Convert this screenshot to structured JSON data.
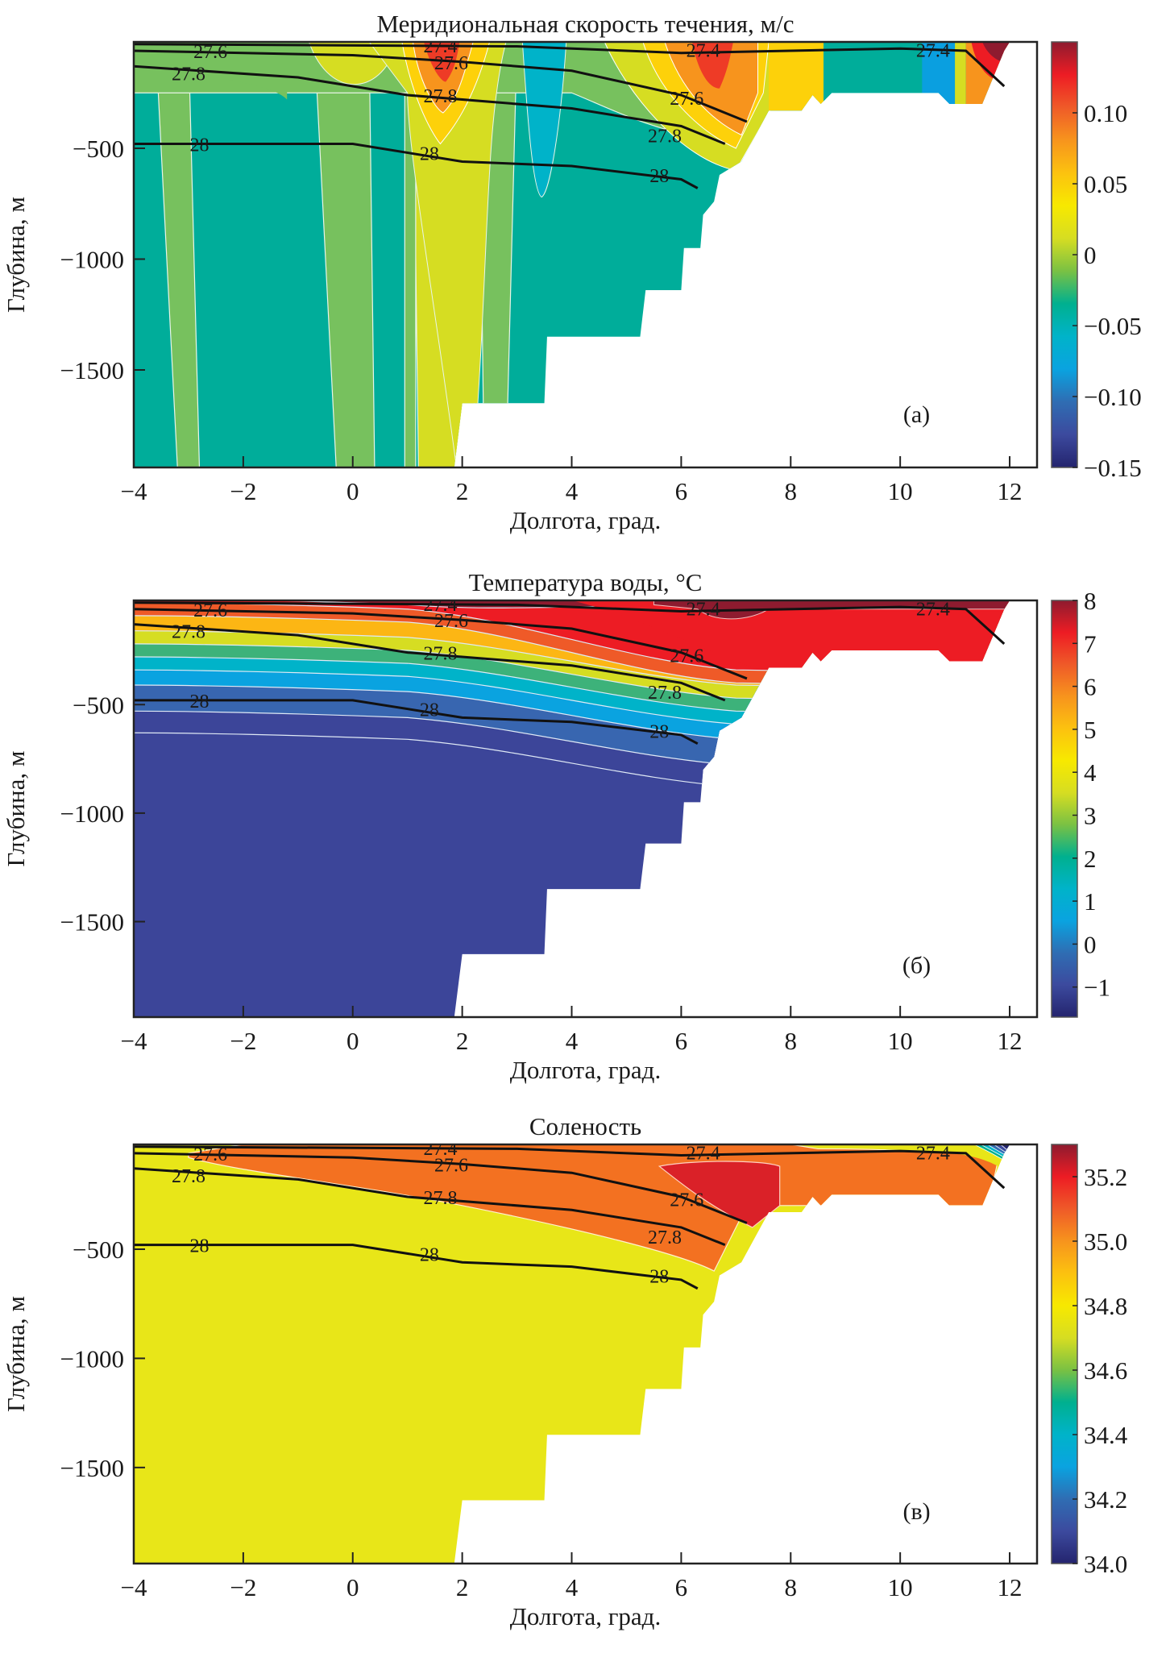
{
  "chart_data": [
    {
      "type": "heatmap",
      "panel_label": "(а)",
      "title": "Меридиональная скорость течения, м/с",
      "xlabel": "Долгота, град.",
      "ylabel": "Глубина, м",
      "xlim": [
        -4,
        12.5
      ],
      "ylim": [
        -1940,
        -20
      ],
      "xticks": [
        -4,
        -2,
        0,
        2,
        4,
        6,
        8,
        10,
        12
      ],
      "xtick_labels": [
        "−4",
        "−2",
        "0",
        "2",
        "4",
        "6",
        "8",
        "10",
        "12"
      ],
      "yticks": [
        -500,
        -1000,
        -1500
      ],
      "ytick_labels": [
        "−500",
        "−1000",
        "−1500"
      ],
      "colorbar": {
        "min": -0.15,
        "max": 0.15,
        "ticks": [
          0.1,
          0.05,
          0,
          -0.05,
          -0.1,
          -0.15
        ],
        "tick_labels": [
          "0.10",
          "0.05",
          "0",
          "−0.05",
          "−0.10",
          "−0.15"
        ]
      },
      "density_contours": [
        "27.4",
        "27.6",
        "27.8",
        "28"
      ],
      "features": [
        {
          "name": "northward core",
          "lon": 1.5,
          "depth_top": -20,
          "depth_bottom": -300,
          "value": 0.1
        },
        {
          "name": "northward core",
          "lon": 6.5,
          "depth_top": -20,
          "depth_bottom": -300,
          "value": 0.1
        },
        {
          "name": "southward jet",
          "lon": 3.5,
          "depth_top": -20,
          "depth_bottom": -700,
          "value": -0.04
        },
        {
          "name": "southward jet",
          "lon": 10.8,
          "depth_top": -20,
          "depth_bottom": -250,
          "value": -0.05
        },
        {
          "name": "strong surface flow",
          "lon": 11.8,
          "depth_top": -20,
          "depth_bottom": -200,
          "value": 0.15
        },
        {
          "name": "background",
          "value": -0.01
        }
      ]
    },
    {
      "type": "heatmap",
      "panel_label": "(б)",
      "title": "Температура воды, °C",
      "xlabel": "Долгота, град.",
      "ylabel": "Глубина, м",
      "xlim": [
        -4,
        12.5
      ],
      "ylim": [
        -1940,
        -20
      ],
      "xticks": [
        -4,
        -2,
        0,
        2,
        4,
        6,
        8,
        10,
        12
      ],
      "xtick_labels": [
        "−4",
        "−2",
        "0",
        "2",
        "4",
        "6",
        "8",
        "10",
        "12"
      ],
      "yticks": [
        -500,
        -1000,
        -1500
      ],
      "ytick_labels": [
        "−500",
        "−1000",
        "−1500"
      ],
      "colorbar": {
        "min": -1.7,
        "max": 8,
        "ticks": [
          8,
          7,
          6,
          5,
          4,
          3,
          2,
          1,
          0,
          -1
        ],
        "tick_labels": [
          "8",
          "7",
          "6",
          "5",
          "4",
          "3",
          "2",
          "1",
          "0",
          "−1"
        ]
      },
      "density_contours": [
        "27.4",
        "27.6",
        "27.8",
        "28"
      ],
      "features": [
        {
          "name": "warm Atlantic layer",
          "lon_range": [
            4,
            12
          ],
          "depth_range": [
            -20,
            -300
          ],
          "value": 7
        },
        {
          "name": "thermocline",
          "depth_range": [
            -50,
            -600
          ],
          "value_range": [
            0,
            7
          ]
        },
        {
          "name": "deep water",
          "depth_range": [
            -600,
            -1940
          ],
          "value": -0.8
        }
      ]
    },
    {
      "type": "heatmap",
      "panel_label": "(в)",
      "title": "Соленость",
      "xlabel": "Долгота, град.",
      "ylabel": "Глубина, м",
      "xlim": [
        -4,
        12.5
      ],
      "ylim": [
        -1940,
        -20
      ],
      "xticks": [
        -4,
        -2,
        0,
        2,
        4,
        6,
        8,
        10,
        12
      ],
      "xtick_labels": [
        "−4",
        "−2",
        "0",
        "2",
        "4",
        "6",
        "8",
        "10",
        "12"
      ],
      "yticks": [
        -500,
        -1000,
        -1500
      ],
      "ytick_labels": [
        "−500",
        "−1000",
        "−1500"
      ],
      "colorbar": {
        "min": 34.0,
        "max": 35.3,
        "ticks": [
          35.2,
          35.0,
          34.8,
          34.6,
          34.4,
          34.2,
          34.0
        ],
        "tick_labels": [
          "35.2",
          "35.0",
          "34.8",
          "34.6",
          "34.4",
          "34.2",
          "34.0"
        ]
      },
      "density_contours": [
        "27.4",
        "27.6",
        "27.8",
        "28"
      ],
      "features": [
        {
          "name": "Atlantic water",
          "depth_range": [
            -20,
            -500
          ],
          "value": 35.05
        },
        {
          "name": "salinity maximum",
          "lon_range": [
            5,
            7
          ],
          "depth_range": [
            -50,
            -300
          ],
          "value": 35.15
        },
        {
          "name": "fresh surface (coast)",
          "lon": 11.8,
          "value": 34.1
        },
        {
          "name": "deep water",
          "value": 34.9
        }
      ]
    }
  ]
}
